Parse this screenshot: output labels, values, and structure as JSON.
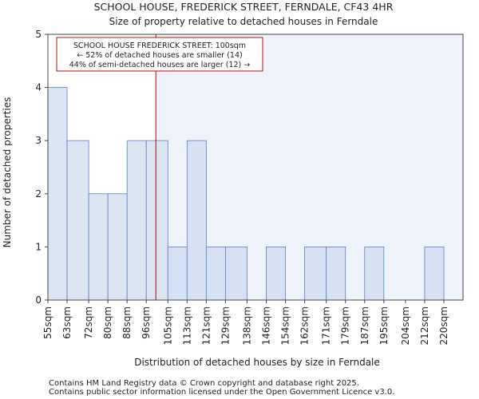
{
  "chart_data": {
    "type": "bar",
    "title": "SCHOOL HOUSE, FREDERICK STREET, FERNDALE, CF43 4HR",
    "subtitle": "Size of property relative to detached houses in Ferndale",
    "xlabel": "Distribution of detached houses by size in Ferndale",
    "ylabel": "Number of detached properties",
    "ylim": [
      0,
      5
    ],
    "yticks": [
      0,
      1,
      2,
      3,
      4,
      5
    ],
    "bin_edges": [
      55,
      63,
      72,
      80,
      88,
      96,
      105,
      113,
      121,
      129,
      138,
      146,
      154,
      162,
      171,
      179,
      187,
      195,
      204,
      212,
      220,
      228
    ],
    "categories": [
      "55sqm",
      "63sqm",
      "72sqm",
      "80sqm",
      "88sqm",
      "96sqm",
      "105sqm",
      "113sqm",
      "121sqm",
      "129sqm",
      "138sqm",
      "146sqm",
      "154sqm",
      "162sqm",
      "171sqm",
      "179sqm",
      "187sqm",
      "195sqm",
      "204sqm",
      "212sqm",
      "220sqm"
    ],
    "values": [
      4,
      3,
      2,
      2,
      3,
      3,
      1,
      3,
      1,
      1,
      0,
      1,
      0,
      1,
      1,
      0,
      1,
      0,
      0,
      1,
      0
    ],
    "highlight_value": 100,
    "bar_color_left": "#dce6f2",
    "bar_color_right": "#d6e2f4",
    "bar_edge_color": "#5a7fc6",
    "marker_color": "#aa1111",
    "annotation": [
      "SCHOOL HOUSE FREDERICK STREET: 100sqm",
      "← 52% of detached houses are smaller (14)",
      "44% of semi-detached houses are larger (12) →"
    ],
    "grid": false
  },
  "footer": {
    "line1": "Contains HM Land Registry data © Crown copyright and database right 2025.",
    "line2": "Contains public sector information licensed under the Open Government Licence v3.0."
  }
}
